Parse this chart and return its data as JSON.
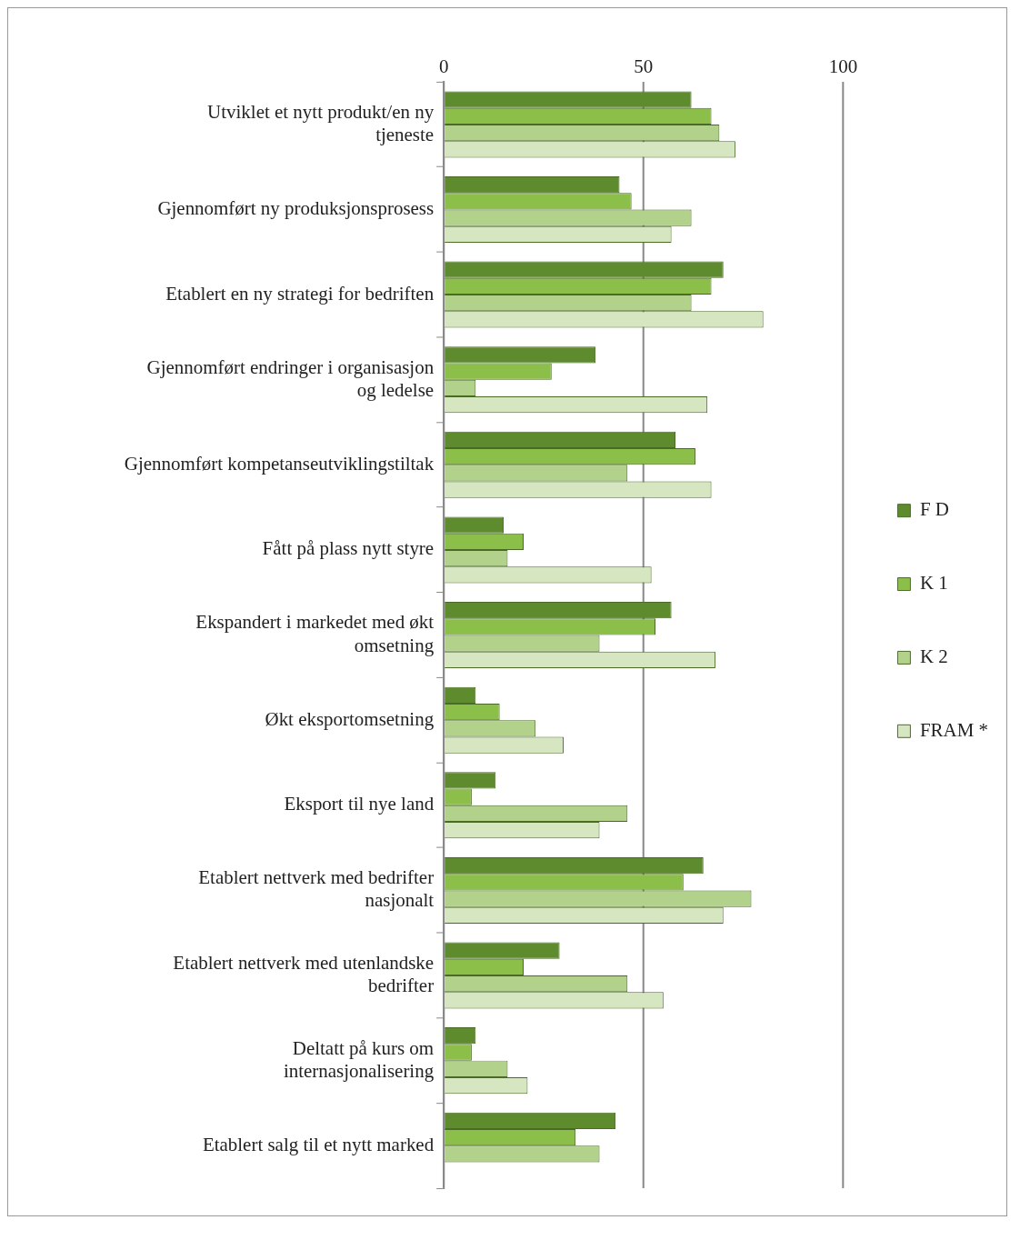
{
  "chart_data": {
    "type": "bar",
    "orientation": "horizontal",
    "categories": [
      "Utviklet et nytt produkt/en ny tjeneste",
      "Gjennomført ny produksjonsprosess",
      "Etablert en ny strategi for bedriften",
      "Gjennomført endringer i organisasjon og ledelse",
      "Gjennomført kompetanseutviklingstiltak",
      "Fått på plass nytt styre",
      "Ekspandert i markedet med økt omsetning",
      "Økt eksportomsetning",
      "Eksport til nye land",
      "Etablert nettverk med bedrifter nasjonalt",
      "Etablert nettverk med utenlandske bedrifter",
      "Deltatt på kurs om internasjonalisering",
      "Etablert salg til et nytt marked"
    ],
    "series": [
      {
        "name": "F D",
        "color": "#5f8b2f",
        "values": [
          62,
          44,
          70,
          38,
          58,
          15,
          57,
          8,
          13,
          65,
          29,
          8,
          43
        ]
      },
      {
        "name": "K 1",
        "color": "#8cbf4a",
        "values": [
          67,
          47,
          67,
          27,
          63,
          20,
          53,
          14,
          7,
          60,
          20,
          7,
          33
        ]
      },
      {
        "name": "K 2",
        "color": "#b2d18a",
        "values": [
          69,
          62,
          62,
          8,
          46,
          16,
          39,
          23,
          46,
          77,
          46,
          16,
          39
        ]
      },
      {
        "name": "FRAM *",
        "color": "#d5e6c0",
        "values": [
          73,
          57,
          80,
          66,
          67,
          52,
          68,
          30,
          39,
          70,
          55,
          21,
          null
        ]
      }
    ],
    "xlim": [
      0,
      100
    ],
    "xticks": [
      0,
      50,
      100
    ],
    "grid": "x",
    "legend": "right"
  }
}
